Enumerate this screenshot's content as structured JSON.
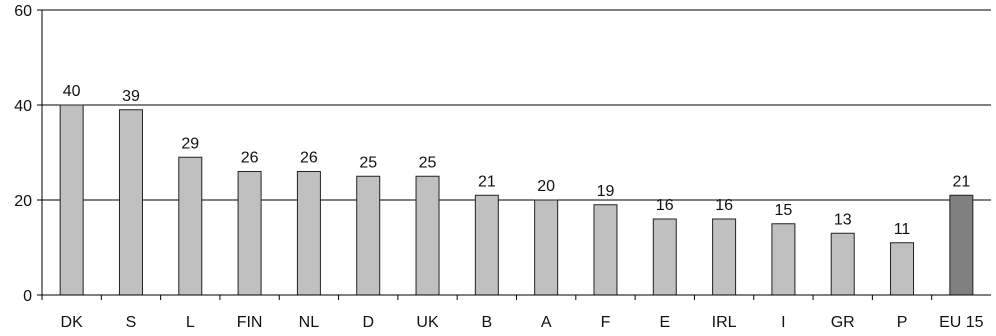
{
  "chart_data": {
    "type": "bar",
    "title": "",
    "xlabel": "",
    "ylabel": "",
    "categories": [
      "DK",
      "S",
      "L",
      "FIN",
      "NL",
      "D",
      "UK",
      "B",
      "A",
      "F",
      "E",
      "IRL",
      "I",
      "GR",
      "P",
      "EU 15"
    ],
    "values": [
      40,
      39,
      29,
      26,
      26,
      25,
      25,
      21,
      20,
      19,
      16,
      16,
      15,
      13,
      11,
      21
    ],
    "ylim": [
      0,
      60
    ],
    "yticks": [
      0,
      20,
      40,
      60
    ],
    "grid": "horizontal gridlines at 20, 40 and 60",
    "data_labels": true,
    "colors": {
      "bar": "#c0c0c0",
      "highlight_bar": "#808080",
      "bar_edge": "#222222",
      "axis": "#000000",
      "grid": "#000000"
    },
    "highlight_categories": [
      "EU 15"
    ]
  }
}
